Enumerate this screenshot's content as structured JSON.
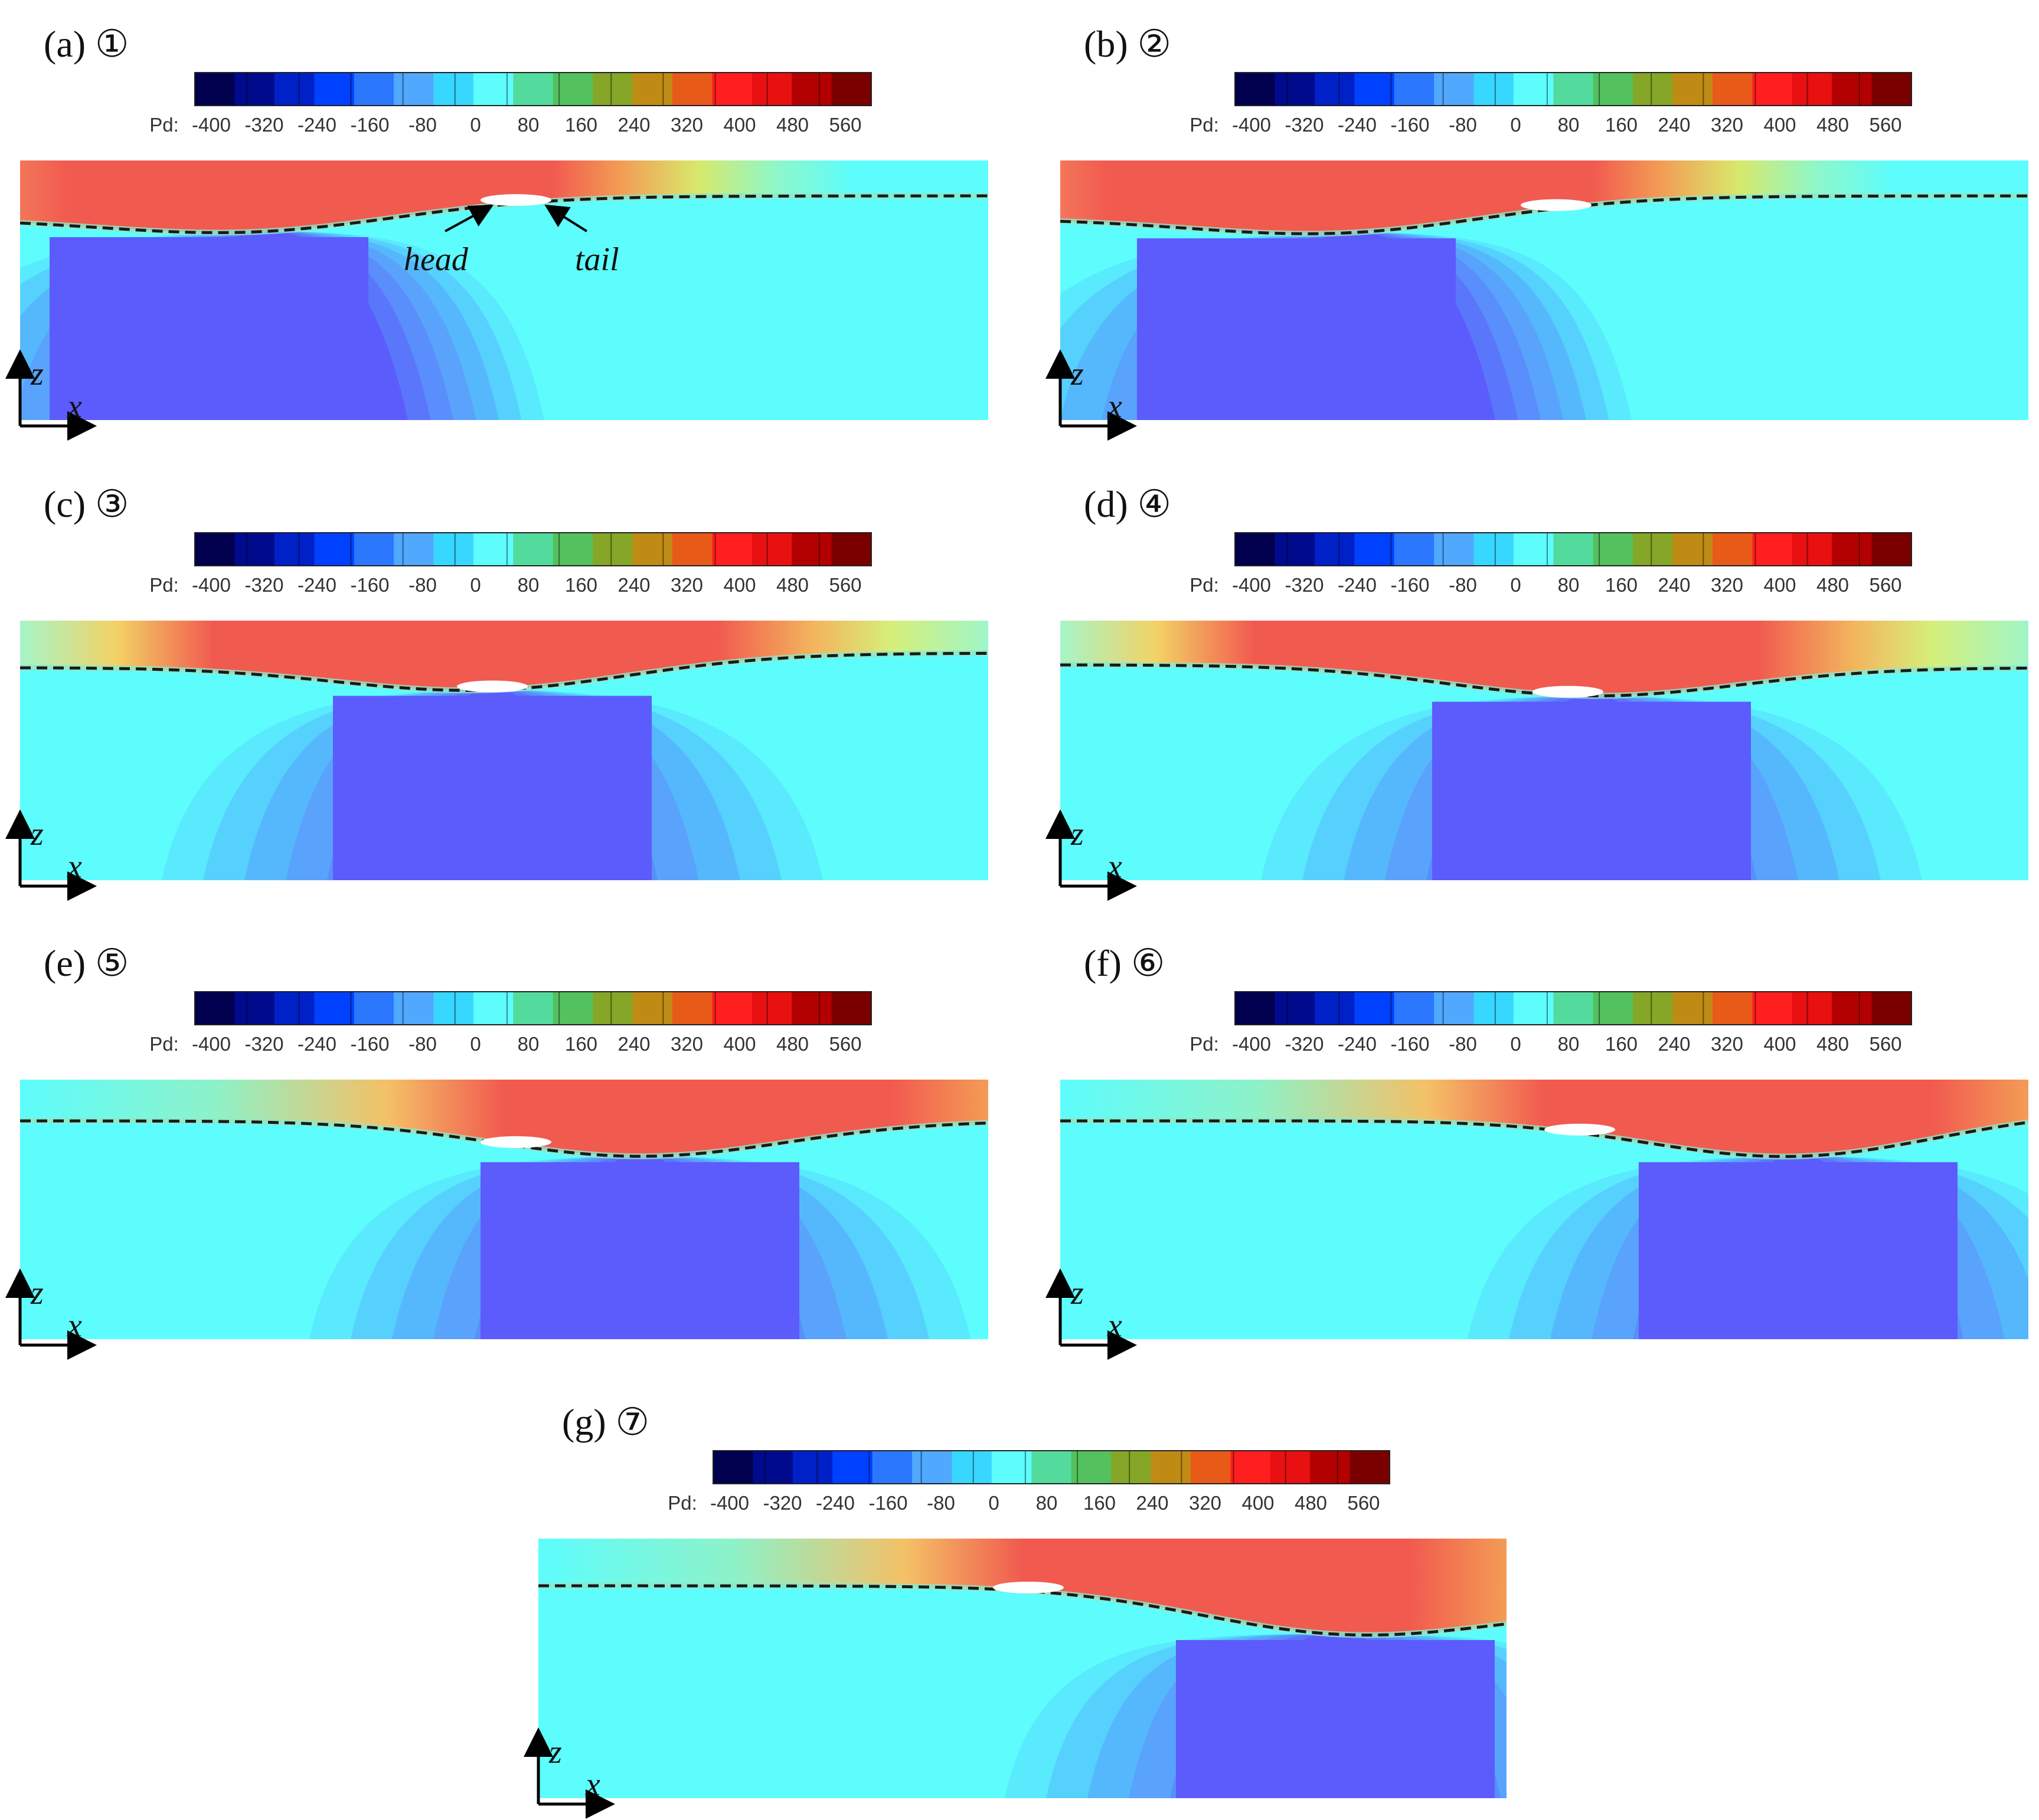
{
  "colors": {
    "air_top": "#f15a4f",
    "water": "#5dfdfd",
    "negative_core": "#5b5cfb",
    "surface_line": "#1a1a1a",
    "colormap": [
      "#00004f",
      "#000a8c",
      "#0020c8",
      "#0040ff",
      "#2b78ff",
      "#50a8ff",
      "#37d7ff",
      "#5dfdfd",
      "#53db9e",
      "#52c15e",
      "#86a627",
      "#c08b14",
      "#e85a18",
      "#ff1f1f",
      "#e81010",
      "#b30000",
      "#7a0000"
    ]
  },
  "icons": {
    "arrow": "arrow-icon"
  },
  "chart_data": [
    {
      "type": "heatmap",
      "panel_label": "(a)",
      "stage_label": "①",
      "colorbar": {
        "var_label": "Pd:",
        "ticks": [
          "-400",
          "-320",
          "-240",
          "-160",
          "-80",
          "0",
          "80",
          "160",
          "240",
          "320",
          "400",
          "480",
          "560"
        ],
        "range": [
          -400,
          600
        ]
      },
      "axis_labels": {
        "x": "x",
        "z": "z"
      },
      "free_surface": {
        "dashed": true
      },
      "annotations": [
        {
          "text": "head"
        },
        {
          "text": "tail"
        }
      ]
    },
    {
      "type": "heatmap",
      "panel_label": "(b)",
      "stage_label": "②",
      "colorbar": {
        "var_label": "Pd:",
        "ticks": [
          "-400",
          "-320",
          "-240",
          "-160",
          "-80",
          "0",
          "80",
          "160",
          "240",
          "320",
          "400",
          "480",
          "560"
        ],
        "range": [
          -400,
          600
        ]
      },
      "axis_labels": {
        "x": "x",
        "z": "z"
      },
      "free_surface": {
        "dashed": true
      },
      "annotations": []
    },
    {
      "type": "heatmap",
      "panel_label": "(c)",
      "stage_label": "③",
      "colorbar": {
        "var_label": "Pd:",
        "ticks": [
          "-400",
          "-320",
          "-240",
          "-160",
          "-80",
          "0",
          "80",
          "160",
          "240",
          "320",
          "400",
          "480",
          "560"
        ],
        "range": [
          -400,
          600
        ]
      },
      "axis_labels": {
        "x": "x",
        "z": "z"
      },
      "free_surface": {
        "dashed": true
      },
      "annotations": []
    },
    {
      "type": "heatmap",
      "panel_label": "(d)",
      "stage_label": "④",
      "colorbar": {
        "var_label": "Pd:",
        "ticks": [
          "-400",
          "-320",
          "-240",
          "-160",
          "-80",
          "0",
          "80",
          "160",
          "240",
          "320",
          "400",
          "480",
          "560"
        ],
        "range": [
          -400,
          600
        ]
      },
      "axis_labels": {
        "x": "x",
        "z": "z"
      },
      "free_surface": {
        "dashed": true
      },
      "annotations": []
    },
    {
      "type": "heatmap",
      "panel_label": "(e)",
      "stage_label": "⑤",
      "colorbar": {
        "var_label": "Pd:",
        "ticks": [
          "-400",
          "-320",
          "-240",
          "-160",
          "-80",
          "0",
          "80",
          "160",
          "240",
          "320",
          "400",
          "480",
          "560"
        ],
        "range": [
          -400,
          600
        ]
      },
      "axis_labels": {
        "x": "x",
        "z": "z"
      },
      "free_surface": {
        "dashed": true
      },
      "annotations": []
    },
    {
      "type": "heatmap",
      "panel_label": "(f)",
      "stage_label": "⑥",
      "colorbar": {
        "var_label": "Pd:",
        "ticks": [
          "-400",
          "-320",
          "-240",
          "-160",
          "-80",
          "0",
          "80",
          "160",
          "240",
          "320",
          "400",
          "480",
          "560"
        ],
        "range": [
          -400,
          600
        ]
      },
      "axis_labels": {
        "x": "x",
        "z": "z"
      },
      "free_surface": {
        "dashed": true
      },
      "annotations": []
    },
    {
      "type": "heatmap",
      "panel_label": "(g)",
      "stage_label": "⑦",
      "colorbar": {
        "var_label": "Pd:",
        "ticks": [
          "-400",
          "-320",
          "-240",
          "-160",
          "-80",
          "0",
          "80",
          "160",
          "240",
          "320",
          "400",
          "480",
          "560"
        ],
        "range": [
          -400,
          600
        ]
      },
      "axis_labels": {
        "x": "x",
        "z": "z"
      },
      "free_surface": {
        "dashed": true
      },
      "annotations": []
    }
  ]
}
